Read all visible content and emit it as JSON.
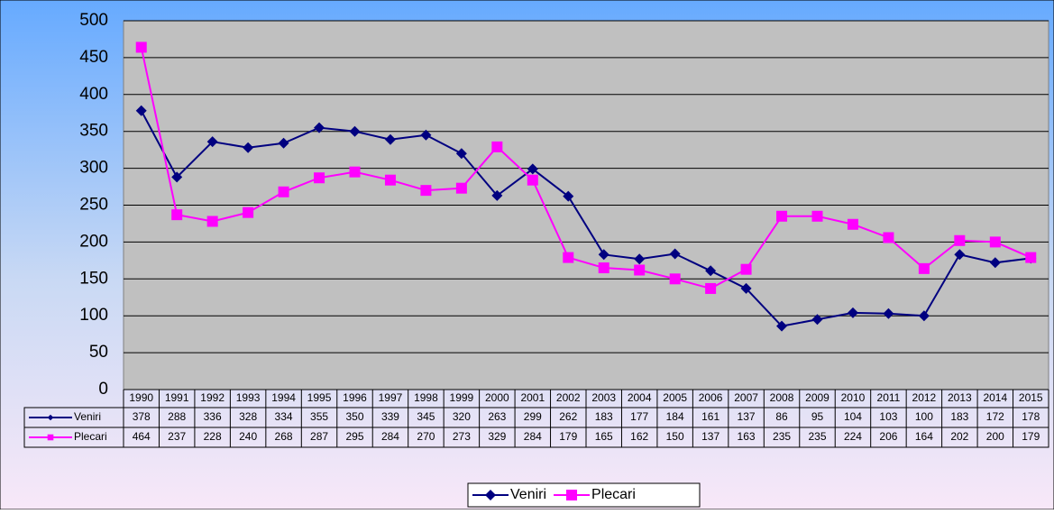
{
  "chart_data": {
    "type": "line",
    "categories": [
      "1990",
      "1991",
      "1992",
      "1993",
      "1994",
      "1995",
      "1996",
      "1997",
      "1998",
      "1999",
      "2000",
      "2001",
      "2002",
      "2003",
      "2004",
      "2005",
      "2006",
      "2007",
      "2008",
      "2009",
      "2010",
      "2011",
      "2012",
      "2013",
      "2014",
      "2015"
    ],
    "series": [
      {
        "name": "Veniri",
        "color": "#000080",
        "values": [
          378,
          288,
          336,
          328,
          334,
          355,
          350,
          339,
          345,
          320,
          263,
          299,
          262,
          183,
          177,
          184,
          161,
          137,
          86,
          95,
          104,
          103,
          100,
          183,
          172,
          178
        ]
      },
      {
        "name": "Plecari",
        "color": "#ff00ff",
        "values": [
          464,
          237,
          228,
          240,
          268,
          287,
          295,
          284,
          270,
          273,
          329,
          284,
          179,
          165,
          162,
          150,
          137,
          163,
          235,
          235,
          224,
          206,
          164,
          202,
          200,
          179
        ]
      }
    ],
    "ylim": [
      0,
      500
    ],
    "yticks": [
      0,
      50,
      100,
      150,
      200,
      250,
      300,
      350,
      400,
      450,
      500
    ],
    "grid": true,
    "legend": "bottom"
  }
}
